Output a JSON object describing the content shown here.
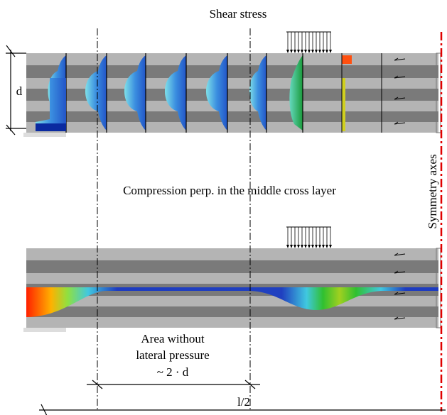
{
  "title": "Shear stress",
  "top_dimension": "d",
  "symmetry_label": "Symmetry axes",
  "middle_title": "Compression perp. in the middle cross layer",
  "area_note": {
    "line1": "Area without",
    "line2": "lateral pressure",
    "line3": "~ 2 · d"
  },
  "bottom_dimension": "l/2"
}
